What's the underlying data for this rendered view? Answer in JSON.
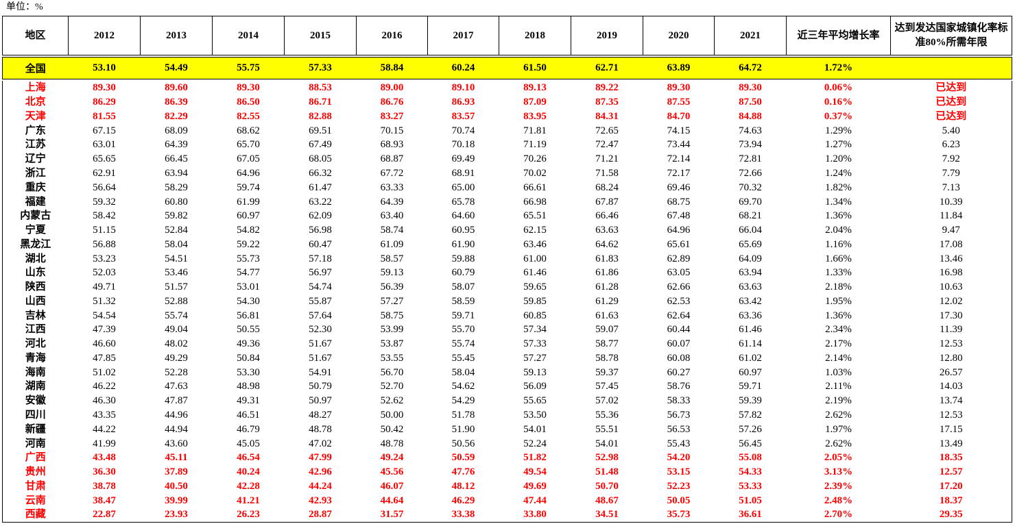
{
  "unit_label": "单位：%",
  "headers": [
    "地区",
    "2012",
    "2013",
    "2014",
    "2015",
    "2016",
    "2017",
    "2018",
    "2019",
    "2020",
    "2021",
    "近三年平均增长率",
    "达到发达国家城镇化率标准80%所需年限"
  ],
  "national": {
    "region": "全国",
    "values": [
      "53.10",
      "54.49",
      "55.75",
      "57.33",
      "58.84",
      "60.24",
      "61.50",
      "62.71",
      "63.89",
      "64.72"
    ],
    "growth": "1.72%",
    "years": ""
  },
  "rows": [
    {
      "region": "上海",
      "values": [
        "89.30",
        "89.60",
        "89.30",
        "88.53",
        "89.00",
        "89.10",
        "89.13",
        "89.22",
        "89.30",
        "89.30"
      ],
      "growth": "0.06%",
      "years": "已达到",
      "highlight": true
    },
    {
      "region": "北京",
      "values": [
        "86.29",
        "86.39",
        "86.50",
        "86.71",
        "86.76",
        "86.93",
        "87.09",
        "87.35",
        "87.55",
        "87.50"
      ],
      "growth": "0.16%",
      "years": "已达到",
      "highlight": true
    },
    {
      "region": "天津",
      "values": [
        "81.55",
        "82.29",
        "82.55",
        "82.88",
        "83.27",
        "83.57",
        "83.95",
        "84.31",
        "84.70",
        "84.88"
      ],
      "growth": "0.37%",
      "years": "已达到",
      "highlight": true
    },
    {
      "region": "广东",
      "values": [
        "67.15",
        "68.09",
        "68.62",
        "69.51",
        "70.15",
        "70.74",
        "71.81",
        "72.65",
        "74.15",
        "74.63"
      ],
      "growth": "1.29%",
      "years": "5.40",
      "highlight": false
    },
    {
      "region": "江苏",
      "values": [
        "63.01",
        "64.39",
        "65.70",
        "67.49",
        "68.93",
        "70.18",
        "71.19",
        "72.47",
        "73.44",
        "73.94"
      ],
      "growth": "1.27%",
      "years": "6.23",
      "highlight": false
    },
    {
      "region": "辽宁",
      "values": [
        "65.65",
        "66.45",
        "67.05",
        "68.05",
        "68.87",
        "69.49",
        "70.26",
        "71.21",
        "72.14",
        "72.81"
      ],
      "growth": "1.20%",
      "years": "7.92",
      "highlight": false
    },
    {
      "region": "浙江",
      "values": [
        "62.91",
        "63.94",
        "64.96",
        "66.32",
        "67.72",
        "68.91",
        "70.02",
        "71.58",
        "72.17",
        "72.66"
      ],
      "growth": "1.24%",
      "years": "7.79",
      "highlight": false
    },
    {
      "region": "重庆",
      "values": [
        "56.64",
        "58.29",
        "59.74",
        "61.47",
        "63.33",
        "65.00",
        "66.61",
        "68.24",
        "69.46",
        "70.32"
      ],
      "growth": "1.82%",
      "years": "7.13",
      "highlight": false
    },
    {
      "region": "福建",
      "values": [
        "59.32",
        "60.80",
        "61.99",
        "63.22",
        "64.39",
        "65.78",
        "66.98",
        "67.87",
        "68.75",
        "69.70"
      ],
      "growth": "1.34%",
      "years": "10.39",
      "highlight": false
    },
    {
      "region": "内蒙古",
      "values": [
        "58.42",
        "59.82",
        "60.97",
        "62.09",
        "63.40",
        "64.60",
        "65.51",
        "66.46",
        "67.48",
        "68.21"
      ],
      "growth": "1.36%",
      "years": "11.84",
      "highlight": false
    },
    {
      "region": "宁夏",
      "values": [
        "51.15",
        "52.84",
        "54.82",
        "56.98",
        "58.74",
        "60.95",
        "62.15",
        "63.63",
        "64.96",
        "66.04"
      ],
      "growth": "2.04%",
      "years": "9.47",
      "highlight": false
    },
    {
      "region": "黑龙江",
      "values": [
        "56.88",
        "58.04",
        "59.22",
        "60.47",
        "61.09",
        "61.90",
        "63.46",
        "64.62",
        "65.61",
        "65.69"
      ],
      "growth": "1.16%",
      "years": "17.08",
      "highlight": false
    },
    {
      "region": "湖北",
      "values": [
        "53.23",
        "54.51",
        "55.73",
        "57.18",
        "58.57",
        "59.88",
        "61.00",
        "61.83",
        "62.89",
        "64.09"
      ],
      "growth": "1.66%",
      "years": "13.46",
      "highlight": false
    },
    {
      "region": "山东",
      "values": [
        "52.03",
        "53.46",
        "54.77",
        "56.97",
        "59.13",
        "60.79",
        "61.46",
        "61.86",
        "63.05",
        "63.94"
      ],
      "growth": "1.33%",
      "years": "16.98",
      "highlight": false
    },
    {
      "region": "陕西",
      "values": [
        "49.71",
        "51.57",
        "53.01",
        "54.74",
        "56.39",
        "58.07",
        "59.65",
        "61.28",
        "62.66",
        "63.63"
      ],
      "growth": "2.18%",
      "years": "10.63",
      "highlight": false
    },
    {
      "region": "山西",
      "values": [
        "51.32",
        "52.88",
        "54.30",
        "55.87",
        "57.27",
        "58.59",
        "59.85",
        "61.29",
        "62.53",
        "63.42"
      ],
      "growth": "1.95%",
      "years": "12.02",
      "highlight": false
    },
    {
      "region": "吉林",
      "values": [
        "54.54",
        "55.74",
        "56.81",
        "57.64",
        "58.75",
        "59.71",
        "60.85",
        "61.63",
        "62.64",
        "63.36"
      ],
      "growth": "1.36%",
      "years": "17.30",
      "highlight": false
    },
    {
      "region": "江西",
      "values": [
        "47.39",
        "49.04",
        "50.55",
        "52.30",
        "53.99",
        "55.70",
        "57.34",
        "59.07",
        "60.44",
        "61.46"
      ],
      "growth": "2.34%",
      "years": "11.39",
      "highlight": false
    },
    {
      "region": "河北",
      "values": [
        "46.60",
        "48.02",
        "49.36",
        "51.67",
        "53.87",
        "55.74",
        "57.33",
        "58.77",
        "60.07",
        "61.14"
      ],
      "growth": "2.17%",
      "years": "12.53",
      "highlight": false
    },
    {
      "region": "青海",
      "values": [
        "47.85",
        "49.29",
        "50.84",
        "51.67",
        "53.55",
        "55.45",
        "57.27",
        "58.78",
        "60.08",
        "61.02"
      ],
      "growth": "2.14%",
      "years": "12.80",
      "highlight": false
    },
    {
      "region": "海南",
      "values": [
        "51.02",
        "52.28",
        "53.30",
        "54.91",
        "56.70",
        "58.04",
        "59.13",
        "59.37",
        "60.27",
        "60.97"
      ],
      "growth": "1.03%",
      "years": "26.57",
      "highlight": false
    },
    {
      "region": "湖南",
      "values": [
        "46.22",
        "47.63",
        "48.98",
        "50.79",
        "52.70",
        "54.62",
        "56.09",
        "57.45",
        "58.76",
        "59.71"
      ],
      "growth": "2.11%",
      "years": "14.03",
      "highlight": false
    },
    {
      "region": "安徽",
      "values": [
        "46.30",
        "47.87",
        "49.31",
        "50.97",
        "52.62",
        "54.29",
        "55.65",
        "57.02",
        "58.33",
        "59.39"
      ],
      "growth": "2.19%",
      "years": "13.74",
      "highlight": false
    },
    {
      "region": "四川",
      "values": [
        "43.35",
        "44.96",
        "46.51",
        "48.27",
        "50.00",
        "51.78",
        "53.50",
        "55.36",
        "56.73",
        "57.82"
      ],
      "growth": "2.62%",
      "years": "12.53",
      "highlight": false
    },
    {
      "region": "新疆",
      "values": [
        "44.22",
        "44.94",
        "46.79",
        "48.78",
        "50.42",
        "51.90",
        "54.01",
        "55.51",
        "56.53",
        "57.26"
      ],
      "growth": "1.97%",
      "years": "17.15",
      "highlight": false
    },
    {
      "region": "河南",
      "values": [
        "41.99",
        "43.60",
        "45.05",
        "47.02",
        "48.78",
        "50.56",
        "52.24",
        "54.01",
        "55.43",
        "56.45"
      ],
      "growth": "2.62%",
      "years": "13.49",
      "highlight": false
    },
    {
      "region": "广西",
      "values": [
        "43.48",
        "45.11",
        "46.54",
        "47.99",
        "49.24",
        "50.59",
        "51.82",
        "52.98",
        "54.20",
        "55.08"
      ],
      "growth": "2.05%",
      "years": "18.35",
      "highlight": true
    },
    {
      "region": "贵州",
      "values": [
        "36.30",
        "37.89",
        "40.24",
        "42.96",
        "45.56",
        "47.76",
        "49.54",
        "51.48",
        "53.15",
        "54.33"
      ],
      "growth": "3.13%",
      "years": "12.57",
      "highlight": true
    },
    {
      "region": "甘肃",
      "values": [
        "38.78",
        "40.50",
        "42.28",
        "44.24",
        "46.07",
        "48.12",
        "49.69",
        "50.70",
        "52.23",
        "53.33"
      ],
      "growth": "2.39%",
      "years": "17.20",
      "highlight": true
    },
    {
      "region": "云南",
      "values": [
        "38.47",
        "39.99",
        "41.21",
        "42.93",
        "44.64",
        "46.29",
        "47.44",
        "48.67",
        "50.05",
        "51.05"
      ],
      "growth": "2.48%",
      "years": "18.37",
      "highlight": true
    },
    {
      "region": "西藏",
      "values": [
        "22.87",
        "23.93",
        "26.23",
        "28.87",
        "31.57",
        "33.38",
        "33.80",
        "34.51",
        "35.73",
        "36.61"
      ],
      "growth": "2.70%",
      "years": "29.35",
      "highlight": true
    }
  ]
}
